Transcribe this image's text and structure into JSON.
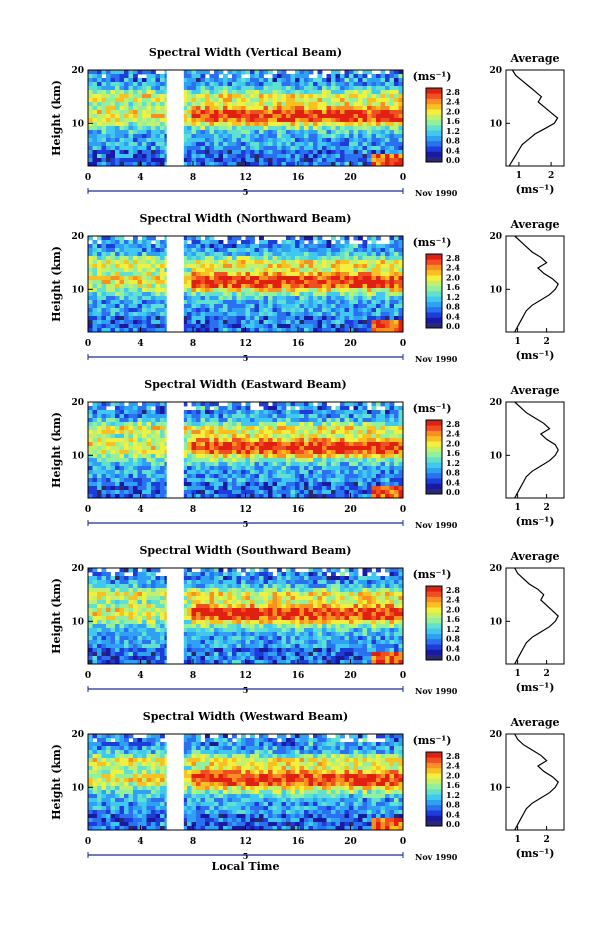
{
  "figure": {
    "xlabel": "Local Time",
    "date_label": "Nov 1990",
    "day_label": "5",
    "avg_title": "Average",
    "avg_xlabel": "(ms⁻¹)",
    "colorbar_unit": "(ms⁻¹)",
    "ylabel": "Height (km)"
  },
  "chart_data": [
    {
      "type": "heatmap",
      "title": "Spectral Width (Vertical Beam)",
      "x_ticks": [
        "0",
        "4",
        "8",
        "12",
        "16",
        "20",
        "0"
      ],
      "y_ticks": [
        "20",
        "10"
      ],
      "colorbar_ticks": [
        "2.8",
        "2.4",
        "2.0",
        "1.6",
        "1.2",
        "0.8",
        "0.4",
        "0.0"
      ],
      "data_gap_hours": [
        6.0,
        7.3
      ],
      "avg_profile": {
        "x_ticks": [
          "1",
          "2"
        ],
        "y_ticks": [
          "20",
          "10"
        ],
        "xlim": [
          0.6,
          2.4
        ],
        "height_km": [
          2,
          3,
          4,
          5,
          6,
          7,
          8,
          9,
          10,
          11,
          12,
          13,
          14,
          15,
          16,
          17,
          18,
          19,
          20
        ],
        "width_ms": [
          0.7,
          0.8,
          0.9,
          1.0,
          1.1,
          1.3,
          1.5,
          1.8,
          2.1,
          2.2,
          2.0,
          1.8,
          1.6,
          1.7,
          1.5,
          1.3,
          1.1,
          0.9,
          0.8
        ]
      }
    },
    {
      "type": "heatmap",
      "title": "Spectral Width (Northward Beam)",
      "x_ticks": [
        "0",
        "4",
        "8",
        "12",
        "16",
        "20",
        "0"
      ],
      "y_ticks": [
        "20",
        "10"
      ],
      "colorbar_ticks": [
        "2.8",
        "2.4",
        "2.0",
        "1.6",
        "1.2",
        "0.8",
        "0.4",
        "0.0"
      ],
      "data_gap_hours": [
        6.0,
        7.3
      ],
      "avg_profile": {
        "x_ticks": [
          "1",
          "2"
        ],
        "y_ticks": [
          "20",
          "10"
        ],
        "xlim": [
          0.6,
          2.6
        ],
        "height_km": [
          2,
          3,
          4,
          5,
          6,
          7,
          8,
          9,
          10,
          11,
          12,
          13,
          14,
          15,
          16,
          17,
          18,
          19,
          20
        ],
        "width_ms": [
          0.9,
          1.0,
          1.1,
          1.2,
          1.3,
          1.5,
          1.8,
          2.1,
          2.3,
          2.4,
          2.2,
          1.9,
          1.7,
          2.0,
          1.8,
          1.5,
          1.3,
          1.1,
          0.9
        ]
      }
    },
    {
      "type": "heatmap",
      "title": "Spectral Width (Eastward Beam)",
      "x_ticks": [
        "0",
        "4",
        "8",
        "12",
        "16",
        "20",
        "0"
      ],
      "y_ticks": [
        "20",
        "10"
      ],
      "colorbar_ticks": [
        "2.8",
        "2.4",
        "2.0",
        "1.6",
        "1.2",
        "0.8",
        "0.4",
        "0.0"
      ],
      "data_gap_hours": [
        6.0,
        7.3
      ],
      "avg_profile": {
        "x_ticks": [
          "1",
          "2"
        ],
        "y_ticks": [
          "20",
          "10"
        ],
        "xlim": [
          0.6,
          2.6
        ],
        "height_km": [
          2,
          3,
          4,
          5,
          6,
          7,
          8,
          9,
          10,
          11,
          12,
          13,
          14,
          15,
          16,
          17,
          18,
          19,
          20
        ],
        "width_ms": [
          0.9,
          1.0,
          1.1,
          1.2,
          1.3,
          1.5,
          1.8,
          2.1,
          2.3,
          2.4,
          2.3,
          2.0,
          1.8,
          2.1,
          1.9,
          1.6,
          1.3,
          1.1,
          0.9
        ]
      }
    },
    {
      "type": "heatmap",
      "title": "Spectral Width (Southward Beam)",
      "x_ticks": [
        "0",
        "4",
        "8",
        "12",
        "16",
        "20",
        "0"
      ],
      "y_ticks": [
        "20",
        "10"
      ],
      "colorbar_ticks": [
        "2.8",
        "2.4",
        "2.0",
        "1.6",
        "1.2",
        "0.8",
        "0.4",
        "0.0"
      ],
      "data_gap_hours": [
        6.0,
        7.3
      ],
      "avg_profile": {
        "x_ticks": [
          "1",
          "2"
        ],
        "y_ticks": [
          "20",
          "10"
        ],
        "xlim": [
          0.6,
          2.6
        ],
        "height_km": [
          2,
          3,
          4,
          5,
          6,
          7,
          8,
          9,
          10,
          11,
          12,
          13,
          14,
          15,
          16,
          17,
          18,
          19,
          20
        ],
        "width_ms": [
          0.9,
          1.0,
          1.1,
          1.2,
          1.3,
          1.5,
          1.8,
          2.1,
          2.3,
          2.4,
          2.2,
          2.0,
          1.8,
          1.9,
          1.7,
          1.4,
          1.2,
          1.0,
          0.9
        ]
      }
    },
    {
      "type": "heatmap",
      "title": "Spectral Width (Westward Beam)",
      "x_ticks": [
        "0",
        "4",
        "8",
        "12",
        "16",
        "20",
        "0"
      ],
      "y_ticks": [
        "20",
        "10"
      ],
      "colorbar_ticks": [
        "2.8",
        "2.4",
        "2.0",
        "1.6",
        "1.2",
        "0.8",
        "0.4",
        "0.0"
      ],
      "data_gap_hours": [
        6.0,
        7.3
      ],
      "avg_profile": {
        "x_ticks": [
          "1",
          "2"
        ],
        "y_ticks": [
          "20",
          "10"
        ],
        "xlim": [
          0.6,
          2.6
        ],
        "height_km": [
          2,
          3,
          4,
          5,
          6,
          7,
          8,
          9,
          10,
          11,
          12,
          13,
          14,
          15,
          16,
          17,
          18,
          19,
          20
        ],
        "width_ms": [
          0.9,
          1.0,
          1.1,
          1.2,
          1.3,
          1.5,
          1.8,
          2.1,
          2.3,
          2.4,
          2.2,
          1.9,
          1.7,
          2.0,
          1.8,
          1.5,
          1.2,
          1.0,
          0.9
        ]
      }
    }
  ],
  "colors": {
    "scale": [
      "#2a2a6a",
      "#1a1aa0",
      "#1e3cd8",
      "#2a70f0",
      "#30a0f5",
      "#40c8f0",
      "#60e0d0",
      "#90f0a0",
      "#c0f070",
      "#f0f040",
      "#f8c020",
      "#f89020",
      "#f05020",
      "#e02010"
    ],
    "axis": "#000000"
  }
}
